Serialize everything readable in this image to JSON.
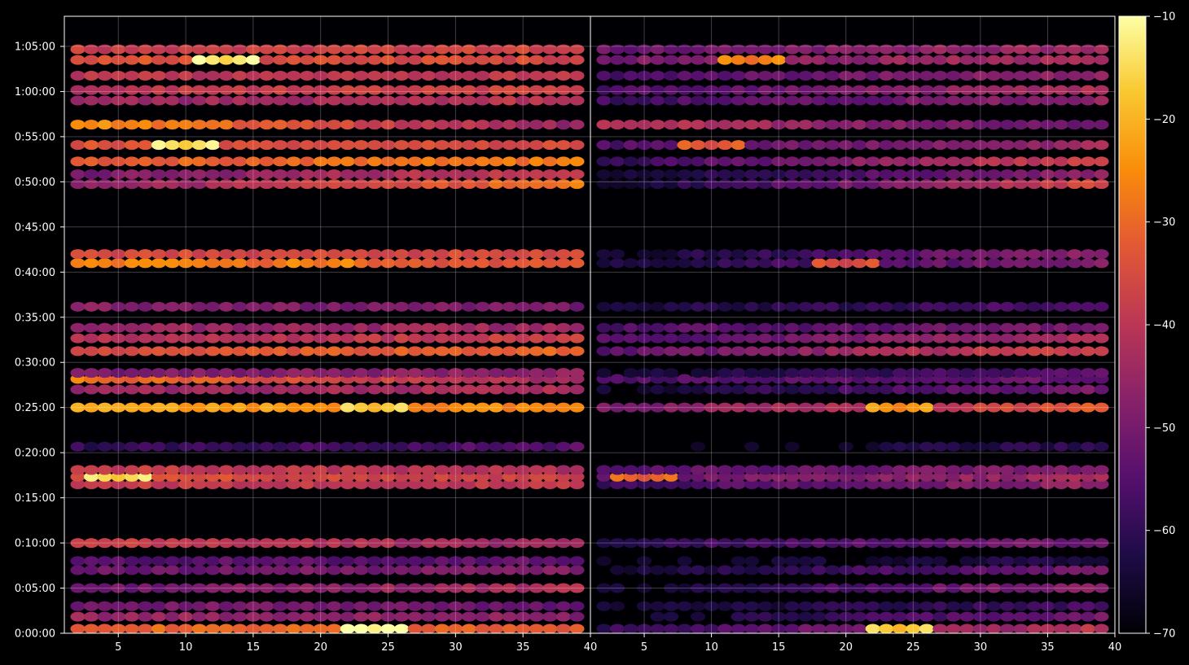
{
  "chart_data": {
    "type": "heatmap",
    "title": "",
    "xlabel": "",
    "ylabel": "",
    "panels": [
      {
        "xlim": [
          1,
          40
        ],
        "x_ticks": [
          5,
          10,
          15,
          20,
          25,
          30,
          35
        ],
        "x_tick_labels": [
          "5",
          "10",
          "15",
          "20",
          "25",
          "30",
          "35"
        ]
      },
      {
        "xlim": [
          1,
          40
        ],
        "x_ticks": [
          5,
          10,
          15,
          20,
          25,
          30,
          35,
          40
        ],
        "x_tick_labels": [
          "5",
          "10",
          "15",
          "20",
          "25",
          "30",
          "35",
          "40"
        ]
      }
    ],
    "shared_x_boundary_label": "40",
    "y_axis": {
      "unit": "seconds",
      "ylim": [
        0,
        4100
      ],
      "ticks": [
        0,
        300,
        600,
        900,
        1200,
        1500,
        1800,
        2100,
        2400,
        2700,
        3000,
        3300,
        3600,
        3900
      ],
      "tick_labels": [
        "0:00:00",
        "0:05:00",
        "0:10:00",
        "0:15:00",
        "0:20:00",
        "0:25:00",
        "0:30:00",
        "0:35:00",
        "0:40:00",
        "0:45:00",
        "0:50:00",
        "0:55:00",
        "1:00:00",
        "1:05:00"
      ]
    },
    "grid": true,
    "colormap": "inferno",
    "colorbar": {
      "range": [
        -70,
        -10
      ],
      "ticks": [
        -10,
        -20,
        -30,
        -40,
        -50,
        -60,
        -70
      ],
      "tick_labels": [
        "−10",
        "−20",
        "−30",
        "−40",
        "−50",
        "−60",
        "−70"
      ]
    },
    "x_columns": [
      2,
      3,
      4,
      5,
      6,
      7,
      8,
      9,
      10,
      11,
      12,
      13,
      14,
      15,
      16,
      17,
      18,
      19,
      20,
      21,
      22,
      23,
      24,
      25,
      26,
      27,
      28,
      29,
      30,
      31,
      32,
      33,
      34,
      35,
      36,
      37,
      38,
      39
    ],
    "bands": [
      {
        "t": 30,
        "p": [
          -30,
          -33
        ],
        "s": [
          -60,
          -40
        ],
        "peak": {
          "x": 24,
          "p": -12,
          "s": -20
        }
      },
      {
        "t": 110,
        "p": [
          -45,
          -48
        ],
        "s": [
          -68,
          -50
        ]
      },
      {
        "t": 180,
        "p": [
          -50,
          -52
        ],
        "s": [
          -66,
          -58
        ]
      },
      {
        "t": 300,
        "p": [
          -52,
          -42
        ],
        "s": [
          -66,
          -46
        ]
      },
      {
        "t": 420,
        "p": [
          -52,
          -48
        ],
        "s": [
          -66,
          -50
        ]
      },
      {
        "t": 480,
        "p": [
          -55,
          -53
        ],
        "s": [
          -68,
          -62
        ]
      },
      {
        "t": 600,
        "p": [
          -38,
          -45
        ],
        "s": [
          -60,
          -50
        ]
      },
      {
        "t": 990,
        "p": [
          -38,
          -40
        ],
        "s": [
          -58,
          -46
        ]
      },
      {
        "t": 1040,
        "p": [
          -34,
          -38
        ],
        "s": [
          -52,
          -44
        ],
        "peak": {
          "x": 5,
          "p": -18,
          "s": -34
        }
      },
      {
        "t": 1085,
        "p": [
          -38,
          -42
        ],
        "s": [
          -54,
          -48
        ]
      },
      {
        "t": 1240,
        "p": [
          -60,
          -55
        ],
        "s": [
          -70,
          -60
        ]
      },
      {
        "t": 1500,
        "p": [
          -22,
          -26
        ],
        "s": [
          -50,
          -32
        ],
        "peak": {
          "x": 24,
          "p": -20,
          "s": -27
        }
      },
      {
        "t": 1620,
        "p": [
          -45,
          -42
        ],
        "s": [
          -66,
          -50
        ]
      },
      {
        "t": 1690,
        "p": [
          -28,
          -44
        ],
        "s": [
          -56,
          -52
        ]
      },
      {
        "t": 1730,
        "p": [
          -50,
          -46
        ],
        "s": [
          -66,
          -54
        ]
      },
      {
        "t": 1875,
        "p": [
          -36,
          -30
        ],
        "s": [
          -54,
          -36
        ]
      },
      {
        "t": 1960,
        "p": [
          -42,
          -38
        ],
        "s": [
          -56,
          -42
        ]
      },
      {
        "t": 2030,
        "p": [
          -46,
          -44
        ],
        "s": [
          -56,
          -50
        ]
      },
      {
        "t": 2170,
        "p": [
          -48,
          -50
        ],
        "s": [
          -64,
          -56
        ]
      },
      {
        "t": 2460,
        "p": [
          -26,
          -35
        ],
        "s": [
          -64,
          -48
        ],
        "peak": {
          "x": 20,
          "p": -30,
          "s": -38
        }
      },
      {
        "t": 2520,
        "p": [
          -36,
          -36
        ],
        "s": [
          -66,
          -46
        ]
      },
      {
        "t": 2985,
        "p": [
          -48,
          -28
        ],
        "s": [
          -66,
          -36
        ]
      },
      {
        "t": 3050,
        "p": [
          -50,
          -38
        ],
        "s": [
          -66,
          -46
        ]
      },
      {
        "t": 3135,
        "p": [
          -32,
          -28
        ],
        "s": [
          -60,
          -36
        ]
      },
      {
        "t": 3245,
        "p": [
          -34,
          -36
        ],
        "s": [
          -56,
          -44
        ],
        "peak": {
          "x": 10,
          "p": -17,
          "s": -36
        }
      },
      {
        "t": 3380,
        "p": [
          -24,
          -46
        ],
        "s": [
          -40,
          -54
        ]
      },
      {
        "t": 3540,
        "p": [
          -46,
          -40
        ],
        "s": [
          -58,
          -46
        ]
      },
      {
        "t": 3610,
        "p": [
          -40,
          -36
        ],
        "s": [
          -56,
          -42
        ]
      },
      {
        "t": 3705,
        "p": [
          -40,
          -40
        ],
        "s": [
          -56,
          -46
        ]
      },
      {
        "t": 3810,
        "p": [
          -34,
          -36
        ],
        "s": [
          -50,
          -42
        ],
        "peak": {
          "x": 13,
          "p": -16,
          "s": -30
        }
      },
      {
        "t": 3880,
        "p": [
          -38,
          -36
        ],
        "s": [
          -52,
          -44
        ]
      }
    ]
  }
}
